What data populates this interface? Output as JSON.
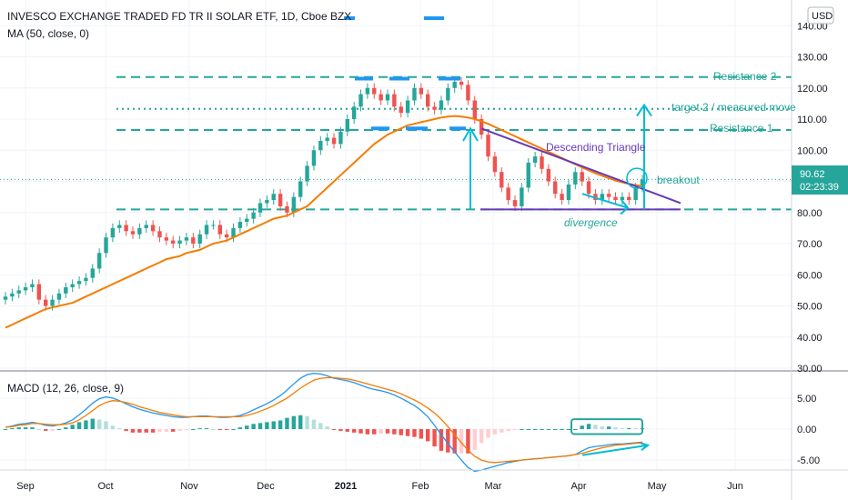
{
  "header": {
    "title": "INVESCO EXCHANGE TRADED FD TR II SOLAR ETF, 1D, Cboe BZX",
    "ma_label": "MA (50, close, 0)",
    "currency": "USD"
  },
  "price_tag": {
    "value": "90.62",
    "countdown": "02:23:39"
  },
  "colors": {
    "up": "#26a69a",
    "down": "#ef5350",
    "ma": "#f57c00",
    "macd": "#2196f3",
    "signal": "#f57c00",
    "annotation": "#26a69a",
    "triangle": "#673ab7",
    "arrow": "#00bcd4"
  },
  "chart_data": [
    {
      "type": "candlestick",
      "indicator": "MA (50, close, 0)",
      "y_axis": {
        "ticks": [
          30,
          40,
          50,
          60,
          70,
          80,
          90,
          100,
          110,
          120,
          130,
          140
        ],
        "ylim": [
          30,
          143
        ]
      },
      "x_axis": {
        "labels": [
          "Sep",
          "Oct",
          "Nov",
          "Dec",
          "2021",
          "Feb",
          "Mar",
          "Apr",
          "May",
          "Jun"
        ]
      },
      "close_series": [
        53,
        54,
        55,
        56,
        57,
        52,
        50,
        52,
        54,
        56,
        57,
        58,
        59,
        62,
        67,
        72,
        75,
        76,
        74,
        73,
        75,
        76,
        74,
        72,
        71,
        70,
        71,
        72,
        70,
        73,
        76,
        76,
        73,
        72,
        75,
        77,
        78,
        80,
        83,
        84,
        86,
        82,
        80,
        85,
        90,
        95,
        100,
        103,
        104,
        102,
        106,
        110,
        114,
        118,
        120,
        118,
        116,
        118,
        114,
        112,
        116,
        120,
        118,
        114,
        113,
        116,
        120,
        122,
        121,
        116,
        110,
        105,
        98,
        93,
        88,
        84,
        82,
        88,
        96,
        98,
        94,
        90,
        86,
        84,
        89,
        93,
        90,
        86,
        84,
        86,
        85,
        84,
        85,
        84,
        88,
        90.62
      ],
      "ma_series": [
        43,
        44,
        45,
        46,
        47,
        48,
        49,
        49.5,
        50,
        50.5,
        51,
        52,
        53,
        54,
        55,
        56,
        57,
        58,
        59,
        60,
        61,
        62,
        63,
        64,
        65,
        65.5,
        66,
        67,
        67.5,
        68,
        69,
        70,
        70.5,
        71,
        72,
        73,
        74,
        75,
        76,
        77,
        78,
        78.5,
        79,
        80,
        81,
        82,
        84,
        86,
        88,
        90,
        92,
        94,
        96,
        98,
        100,
        102,
        103.5,
        105,
        106,
        107,
        108,
        108.5,
        109,
        109.5,
        110,
        110.5,
        110.8,
        111,
        110.8,
        110.5,
        110,
        109.3,
        108.5,
        107.5,
        106.5,
        105.5,
        104.5,
        103.5,
        102.5,
        101.5,
        100.5,
        99.5,
        98.5,
        97.5,
        96.5,
        95.5,
        94.5,
        93.5,
        92.6,
        91.8,
        91,
        90.3,
        89.7,
        89.2,
        88.8,
        88.5
      ],
      "annotations": [
        {
          "label": "Resistance 2",
          "y": 123.5
        },
        {
          "label": "target 2 / measured move",
          "y": 113.3
        },
        {
          "label": "Resistance 1",
          "y": 106.5
        },
        {
          "label": "Descending Triangle"
        },
        {
          "label": "breakout"
        },
        {
          "label": "divergence"
        }
      ]
    },
    {
      "type": "macd",
      "name": "MACD (12, 26, close, 9)",
      "y_axis": {
        "ticks": [
          5,
          0,
          -5
        ],
        "ylim": [
          -6.6,
          9.1
        ]
      },
      "macd": [
        0.3,
        0.5,
        0.8,
        0.9,
        1.1,
        0.9,
        0.6,
        0.5,
        0.7,
        1.0,
        1.5,
        2.3,
        3.2,
        4.2,
        4.9,
        5.2,
        5.0,
        4.6,
        4.1,
        3.6,
        3.2,
        2.9,
        2.6,
        2.4,
        2.2,
        2.0,
        1.9,
        1.9,
        2.0,
        2.1,
        2.1,
        2.0,
        1.9,
        1.9,
        2.0,
        2.2,
        2.6,
        3.1,
        3.6,
        4.1,
        4.7,
        5.4,
        6.3,
        7.3,
        8.2,
        8.8,
        9.0,
        8.9,
        8.6,
        8.2,
        8.0,
        7.8,
        7.5,
        7.1,
        6.7,
        6.4,
        6.2,
        5.9,
        5.5,
        5.0,
        4.4,
        3.8,
        3.0,
        2.0,
        0.6,
        -0.9,
        -2.3,
        -3.7,
        -5.0,
        -6.2,
        -6.8,
        -6.6,
        -6.3,
        -6.0,
        -5.7,
        -5.4,
        -5.2,
        -5.0,
        -4.9,
        -4.8,
        -4.7,
        -4.6,
        -4.5,
        -4.4,
        -4.3,
        -4.1,
        -3.5,
        -3.0,
        -2.8,
        -2.7,
        -2.5,
        -2.4,
        -2.4,
        -2.3,
        -2.2,
        -2.1
      ],
      "signal": [
        0.3,
        0.4,
        0.6,
        0.7,
        0.9,
        0.9,
        0.8,
        0.7,
        0.7,
        0.8,
        1.0,
        1.5,
        2.2,
        3.0,
        3.8,
        4.3,
        4.6,
        4.5,
        4.3,
        4.0,
        3.6,
        3.3,
        3.0,
        2.7,
        2.5,
        2.3,
        2.1,
        2.0,
        2.0,
        2.0,
        2.0,
        2.0,
        2.0,
        2.0,
        2.0,
        2.0,
        2.2,
        2.5,
        2.9,
        3.3,
        3.8,
        4.4,
        5.0,
        5.8,
        6.6,
        7.3,
        7.9,
        8.2,
        8.3,
        8.3,
        8.2,
        8.1,
        7.9,
        7.6,
        7.3,
        7.0,
        6.7,
        6.4,
        6.1,
        5.7,
        5.2,
        4.7,
        4.1,
        3.4,
        2.6,
        1.6,
        0.4,
        -0.9,
        -2.2,
        -3.4,
        -4.4,
        -5.0,
        -5.3,
        -5.4,
        -5.3,
        -5.2,
        -5.1,
        -5.0,
        -4.9,
        -4.8,
        -4.7,
        -4.6,
        -4.5,
        -4.4,
        -4.3,
        -4.1,
        -3.9,
        -3.6,
        -3.3,
        -3.0,
        -2.8,
        -2.6,
        -2.5,
        -2.4,
        -2.3,
        -2.2
      ]
    }
  ]
}
